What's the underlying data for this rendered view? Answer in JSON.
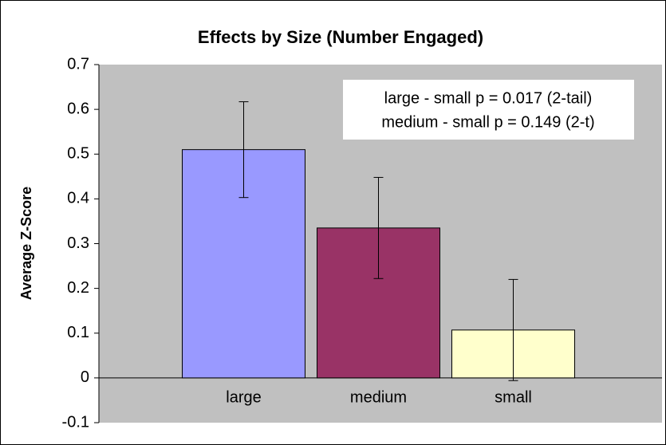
{
  "chart_data": {
    "type": "bar",
    "title": "Effects by Size (Number Engaged)",
    "ylabel": "Average Z-Score",
    "categories": [
      "large",
      "medium",
      "small"
    ],
    "values": [
      0.51,
      0.335,
      0.107
    ],
    "errors": [
      0.107,
      0.113,
      0.113
    ],
    "colors": [
      "#9999ff",
      "#993366",
      "#ffffcc"
    ],
    "ylim": [
      -0.1,
      0.7
    ],
    "yticks": [
      -0.1,
      0,
      0.1,
      0.2,
      0.3,
      0.4,
      0.5,
      0.6,
      0.7
    ],
    "annotations": [
      "large - small p = 0.017 (2-tail)",
      "medium - small p = 0.149 (2-t)"
    ],
    "grid": false
  }
}
